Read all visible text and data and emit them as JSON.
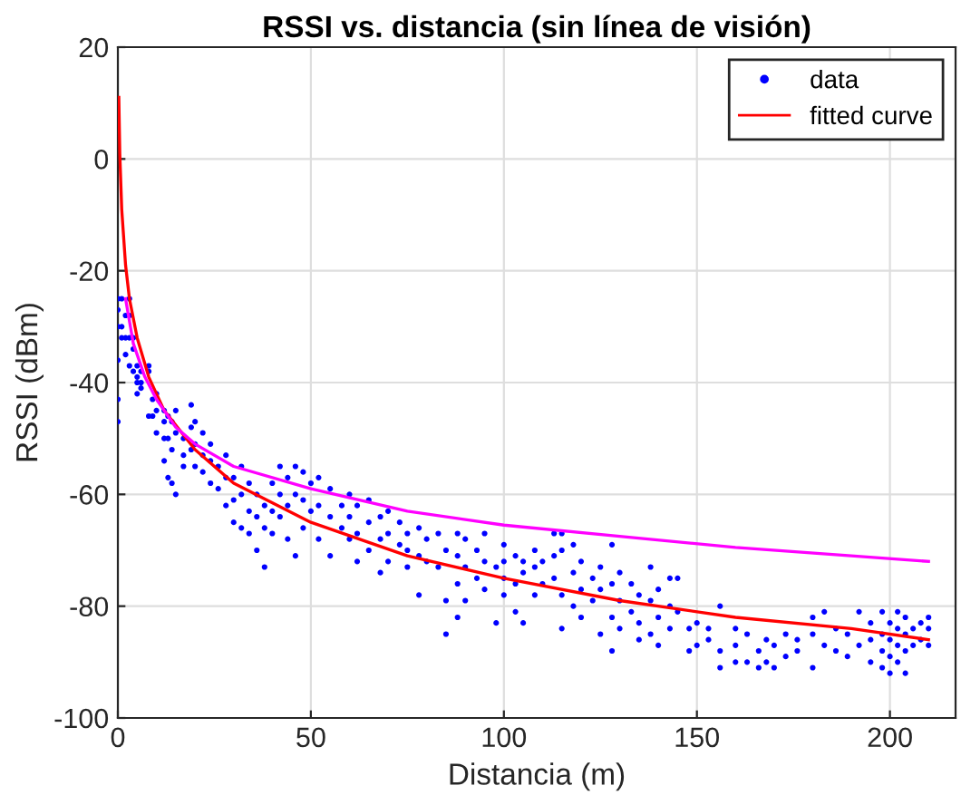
{
  "chart_data": {
    "type": "scatter",
    "title": "RSSI vs. distancia (sin línea de visión)",
    "xlabel": "Distancia (m)",
    "ylabel": "RSSI (dBm)",
    "xlim": [
      0,
      217
    ],
    "ylim": [
      -100,
      20
    ],
    "xticks": [
      0,
      50,
      100,
      150,
      200
    ],
    "yticks": [
      -100,
      -80,
      -60,
      -40,
      -20,
      0,
      20
    ],
    "grid": true,
    "legend": "top right",
    "series": [
      {
        "name": "data",
        "marker": "circle",
        "color": "#0000ff",
        "x": [
          0,
          0,
          0,
          0,
          0,
          0,
          1,
          1,
          1,
          2,
          2,
          2,
          3,
          3,
          3,
          3,
          4,
          4,
          4,
          5,
          5,
          5,
          5,
          6,
          6,
          6,
          8,
          8,
          8,
          9,
          9,
          10,
          10,
          10,
          12,
          12,
          12,
          12,
          13,
          13,
          13,
          14,
          14,
          14,
          15,
          15,
          15,
          17,
          17,
          17,
          19,
          19,
          19,
          20,
          20,
          20,
          22,
          22,
          22,
          24,
          24,
          24,
          26,
          26,
          28,
          28,
          28,
          30,
          30,
          30,
          32,
          32,
          32,
          34,
          34,
          34,
          36,
          36,
          36,
          38,
          38,
          38,
          40,
          40,
          40,
          42,
          42,
          42,
          44,
          44,
          44,
          46,
          46,
          46,
          48,
          48,
          48,
          50,
          50,
          52,
          52,
          52,
          55,
          55,
          55,
          58,
          58,
          60,
          60,
          60,
          62,
          62,
          62,
          65,
          65,
          65,
          68,
          68,
          68,
          70,
          70,
          70,
          73,
          73,
          75,
          75,
          75,
          78,
          78,
          78,
          80,
          80,
          83,
          83,
          85,
          85,
          85,
          88,
          88,
          88,
          88,
          90,
          90,
          90,
          93,
          93,
          95,
          95,
          95,
          98,
          98,
          100,
          100,
          100,
          100,
          103,
          103,
          103,
          105,
          105,
          105,
          108,
          108,
          108,
          110,
          110,
          113,
          113,
          113,
          115,
          115,
          115,
          115,
          118,
          118,
          118,
          120,
          120,
          120,
          123,
          123,
          125,
          125,
          125,
          128,
          128,
          128,
          128,
          130,
          130,
          130,
          133,
          133,
          135,
          135,
          135,
          138,
          138,
          138,
          140,
          140,
          140,
          143,
          143,
          143,
          145,
          145,
          148,
          148,
          150,
          150,
          153,
          153,
          156,
          156,
          156,
          160,
          160,
          160,
          163,
          163,
          166,
          166,
          168,
          168,
          170,
          170,
          173,
          173,
          176,
          176,
          180,
          180,
          180,
          183,
          183,
          186,
          186,
          189,
          189,
          192,
          192,
          195,
          195,
          195,
          198,
          198,
          198,
          198,
          200,
          200,
          200,
          200,
          202,
          202,
          202,
          202,
          204,
          204,
          204,
          204,
          206,
          206,
          208,
          208,
          210,
          210,
          210
        ],
        "values": [
          -25,
          -27,
          -30,
          -36,
          -43,
          -47,
          -25,
          -30,
          -32,
          -28,
          -32,
          -35,
          -25,
          -28,
          -32,
          -37,
          -32,
          -34,
          -38,
          -37,
          -39,
          -40,
          -42,
          -38,
          -40,
          -41,
          -37,
          -38,
          -46,
          -43,
          -46,
          -42,
          -45,
          -49,
          -45,
          -47,
          -50,
          -54,
          -46,
          -50,
          -57,
          -47,
          -52,
          -58,
          -45,
          -49,
          -60,
          -50,
          -53,
          -55,
          -44,
          -48,
          -52,
          -47,
          -51,
          -55,
          -49,
          -53,
          -56,
          -51,
          -54,
          -58,
          -55,
          -59,
          -53,
          -57,
          -62,
          -57,
          -61,
          -65,
          -55,
          -60,
          -66,
          -58,
          -63,
          -67,
          -60,
          -64,
          -70,
          -62,
          -66,
          -73,
          -58,
          -63,
          -67,
          -55,
          -60,
          -64,
          -57,
          -62,
          -68,
          -55,
          -60,
          -71,
          -56,
          -61,
          -66,
          -58,
          -63,
          -57,
          -62,
          -68,
          -59,
          -64,
          -71,
          -62,
          -66,
          -60,
          -64,
          -68,
          -62,
          -67,
          -72,
          -61,
          -65,
          -70,
          -64,
          -68,
          -74,
          -63,
          -67,
          -72,
          -65,
          -69,
          -67,
          -70,
          -73,
          -66,
          -71,
          -78,
          -68,
          -72,
          -67,
          -73,
          -70,
          -79,
          -85,
          -67,
          -71,
          -76,
          -82,
          -68,
          -73,
          -79,
          -70,
          -75,
          -67,
          -72,
          -77,
          -73,
          -83,
          -69,
          -72,
          -75,
          -78,
          -71,
          -76,
          -81,
          -72,
          -74,
          -83,
          -70,
          -73,
          -78,
          -72,
          -76,
          -67,
          -71,
          -75,
          -67,
          -70,
          -78,
          -84,
          -69,
          -74,
          -80,
          -72,
          -77,
          -82,
          -75,
          -79,
          -73,
          -77,
          -85,
          -69,
          -76,
          -82,
          -88,
          -74,
          -79,
          -84,
          -76,
          -81,
          -78,
          -83,
          -86,
          -73,
          -79,
          -85,
          -77,
          -82,
          -87,
          -75,
          -80,
          -84,
          -75,
          -81,
          -84,
          -88,
          -83,
          -87,
          -84,
          -86,
          -80,
          -88,
          -91,
          -84,
          -87,
          -90,
          -85,
          -90,
          -88,
          -91,
          -86,
          -90,
          -87,
          -91,
          -85,
          -89,
          -86,
          -88,
          -82,
          -85,
          -91,
          -81,
          -87,
          -84,
          -88,
          -85,
          -89,
          -81,
          -87,
          -83,
          -86,
          -90,
          -81,
          -85,
          -88,
          -91,
          -83,
          -86,
          -89,
          -92,
          -81,
          -84,
          -87,
          -90,
          -82,
          -85,
          -88,
          -92,
          -84,
          -87,
          -83,
          -86,
          -82,
          -84,
          -87
        ]
      },
      {
        "name": "fitted curve",
        "type": "line",
        "color": "#ff0000",
        "x": [
          0.25,
          0.5,
          1,
          2,
          3,
          5,
          8,
          12,
          20,
          30,
          50,
          75,
          100,
          130,
          160,
          190,
          210
        ],
        "values": [
          11,
          1,
          -9,
          -19,
          -25,
          -32,
          -39,
          -45,
          -52,
          -58,
          -65,
          -71,
          -75,
          -79,
          -82,
          -84,
          -86
        ]
      },
      {
        "type": "line",
        "color": "#ff00ff",
        "x": [
          2,
          4,
          7,
          10,
          15,
          20,
          30,
          50,
          75,
          100,
          130,
          160,
          190,
          210
        ],
        "values": [
          -25,
          -33,
          -39,
          -43,
          -48,
          -51,
          -55,
          -59,
          -63,
          -65.5,
          -67.5,
          -69.5,
          -71,
          -72
        ]
      }
    ]
  }
}
